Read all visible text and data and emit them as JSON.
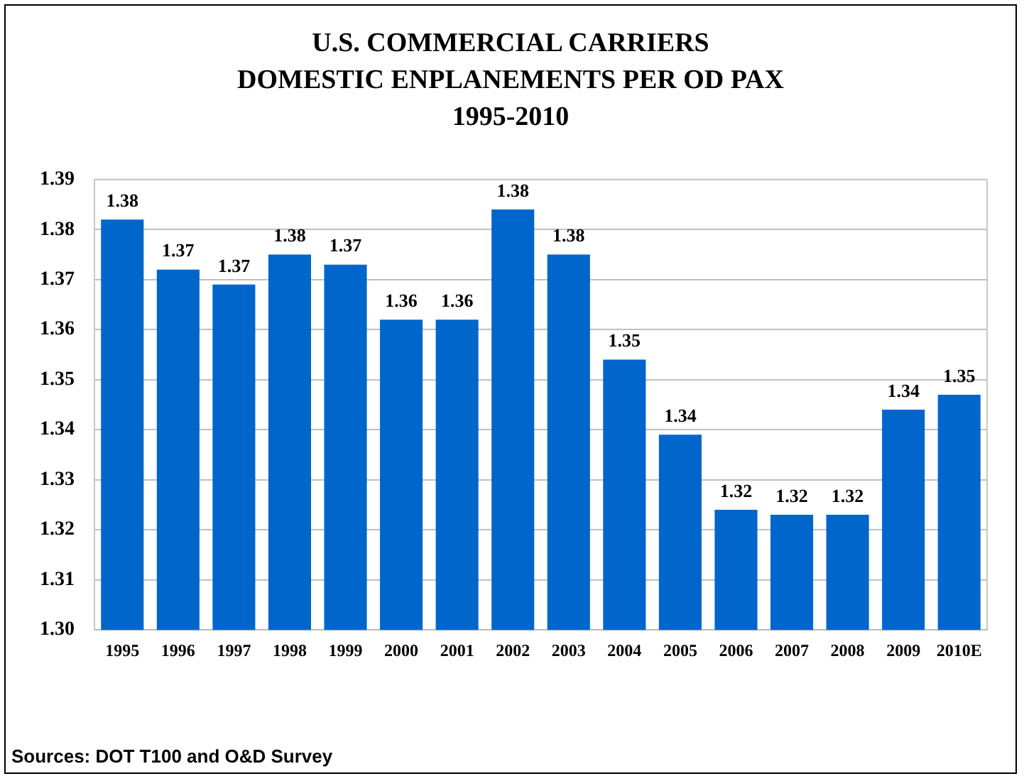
{
  "chart_data": {
    "type": "bar",
    "title": "U.S. COMMERCIAL CARRIERS\nDOMESTIC ENPLANEMENTS PER OD PAX\n1995-2010",
    "categories": [
      "1995",
      "1996",
      "1997",
      "1998",
      "1999",
      "2000",
      "2001",
      "2002",
      "2003",
      "2004",
      "2005",
      "2006",
      "2007",
      "2008",
      "2009",
      "2010E"
    ],
    "values": [
      1.382,
      1.372,
      1.369,
      1.375,
      1.373,
      1.362,
      1.362,
      1.384,
      1.375,
      1.354,
      1.339,
      1.324,
      1.323,
      1.323,
      1.344,
      1.347
    ],
    "value_labels": [
      "1.38",
      "1.37",
      "1.37",
      "1.38",
      "1.37",
      "1.36",
      "1.36",
      "1.38",
      "1.38",
      "1.35",
      "1.34",
      "1.32",
      "1.32",
      "1.32",
      "1.34",
      "1.35"
    ],
    "color": "#0066cc",
    "ylim": [
      1.3,
      1.39
    ],
    "yticks": [
      {
        "value": 1.3,
        "label": "1.30"
      },
      1.31,
      1.32,
      1.33,
      1.34,
      1.35,
      1.36,
      1.37,
      1.38,
      1.39
    ],
    "grid": "y",
    "annotations": [
      "Sources: DOT T100 and O&D Survey"
    ]
  }
}
